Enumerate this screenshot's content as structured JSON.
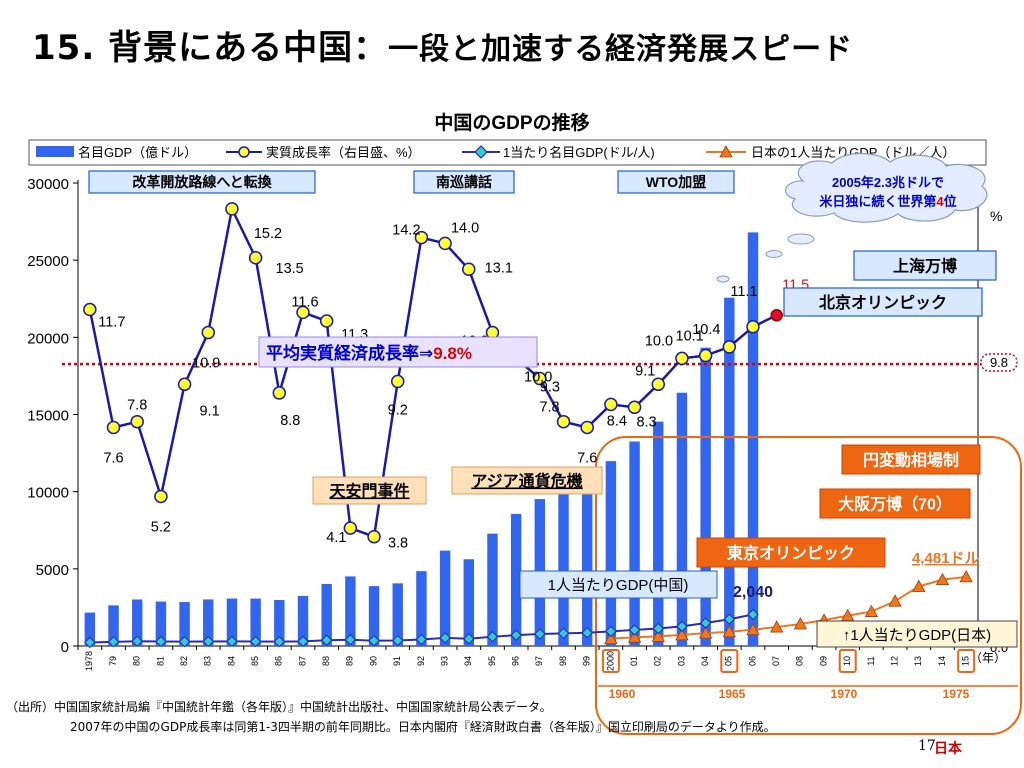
{
  "slide": {
    "title_number": "15.",
    "title_main": "背景にある中国",
    "title_sep": "：",
    "title_sub": "一段と加速する経済発展スピード",
    "footer_line1": "（出所）中国国家統計局編『中国統計年鑑（各年版）』中国統計出版社、中国国家統計局公表データ。",
    "footer_line2": "2007年の中国のGDP成長率は同第1-3四半期の前年同期比。日本内閣府『経済財政白書（各年版）』国立印刷局のデータより作成。",
    "page_number": "17",
    "page_number_jp": "日本"
  },
  "annotations": {
    "reform": "改革開放路線へと転換",
    "south_tour": "南巡講話",
    "wto": "WTO加盟",
    "cloud_line1": "2005年2.3兆ドルで",
    "cloud_line2_a": "米日独に続く世界第",
    "cloud_line2_b": "4",
    "cloud_line2_c": "位",
    "shanghai_expo": "上海万博",
    "beijing_olympics": "北京オリンピック",
    "avg_growth_label": "平均実質経済成長率⇒",
    "avg_growth_value": "9.8%",
    "tiananmen": "天安門事件",
    "asian_crisis": "アジア通貨危機",
    "yen_float": "円変動相場制",
    "osaka_expo": "大阪万博（70）",
    "tokyo_olympics": "東京オリンピック",
    "japan_value": "4,481ドル",
    "china_per_capita_box": "1人当たりGDP(中国)",
    "china_per_capita_value": "2,040",
    "japan_per_capita_box": "↑1人当たりGDP(日本)",
    "right_axis_end_value": "9.8",
    "right_axis_pct": "%",
    "growth_2007_label": "11.5",
    "year_unit": "（年）",
    "japan_years": [
      "1960",
      "1965",
      "1970",
      "1975"
    ]
  },
  "colors": {
    "bar": "#3366ee",
    "growth_line": "#1a1aa8",
    "growth_marker": "#ffff33",
    "per_capita_line": "#2b2bb3",
    "per_capita_marker": "#33cccc",
    "japan_line": "#ee7722",
    "avg_line": "#dd0000",
    "box_blue": "#1f5fcf",
    "box_orange": "#ee6611",
    "cloud_text": "#0000cc"
  },
  "chart_data": {
    "type": "bar",
    "title": "中国のGDPの推移",
    "legend": [
      "名目GDP（億ドル）",
      "実質成長率（右目盛、%）",
      "1当たり名目GDP(ドル/人)",
      "日本の1人当たりGDP（ドル／人）"
    ],
    "categories": [
      "1978",
      "79",
      "80",
      "81",
      "82",
      "83",
      "84",
      "85",
      "86",
      "87",
      "88",
      "89",
      "90",
      "91",
      "92",
      "93",
      "94",
      "95",
      "96",
      "97",
      "98",
      "99",
      "2000",
      "01",
      "02",
      "03",
      "04",
      "05",
      "06",
      "07",
      "08",
      "09",
      "10",
      "11",
      "12",
      "13",
      "14",
      "15"
    ],
    "y_ticks": [
      "0",
      "5000",
      "10000",
      "15000",
      "20000",
      "25000",
      "30000"
    ],
    "ylim": [
      0,
      30000
    ],
    "right_axis_cut_labels": [
      "0.0"
    ],
    "series": [
      {
        "name": "名目GDP（億ドル）",
        "kind": "bar",
        "values": [
          2165,
          2633,
          3015,
          2880,
          2847,
          3018,
          3079,
          3071,
          2980,
          3240,
          4020,
          4510,
          3880,
          4060,
          4850,
          6180,
          5620,
          7280,
          8560,
          9520,
          10200,
          10800,
          11980,
          13250,
          14540,
          16410,
          19330,
          22570,
          26800,
          null,
          null,
          null,
          null,
          null,
          null,
          null,
          null,
          null
        ]
      },
      {
        "name": "実質成長率（右目盛、%）",
        "kind": "line",
        "values": [
          11.7,
          7.6,
          7.8,
          5.2,
          9.1,
          10.9,
          15.2,
          13.5,
          8.8,
          11.6,
          11.3,
          4.1,
          3.8,
          9.2,
          14.2,
          14.0,
          13.1,
          10.9,
          10.0,
          9.3,
          7.8,
          7.6,
          8.4,
          8.3,
          9.1,
          10.0,
          10.1,
          10.4,
          11.1,
          11.5,
          null,
          null,
          null,
          null,
          null,
          null,
          null,
          null
        ],
        "printed_labels": [
          "11.7",
          "7.6",
          "7.8",
          "5.2",
          "9.1",
          "10.9",
          "15.2",
          "13.5",
          "8.8",
          "11.6",
          "11.3",
          "4.1",
          "3.8",
          "9.2",
          "14.2",
          "14.0",
          "13.1",
          "10.9",
          "10.0",
          "9.3",
          "7.8",
          "7.6",
          "8.4",
          "8.3",
          "9.1",
          "10.0",
          "10.1",
          "10.4",
          "11.1",
          "11.5"
        ]
      },
      {
        "name": "1当たり名目GDP(ドル/人)",
        "kind": "line",
        "values": [
          226,
          271,
          306,
          291,
          280,
          292,
          297,
          291,
          281,
          300,
          370,
          407,
          344,
          355,
          419,
          524,
          470,
          602,
          703,
          774,
          822,
          860,
          946,
          1042,
          1135,
          1274,
          1490,
          1731,
          2040,
          null,
          null,
          null,
          null,
          null,
          null,
          null,
          null,
          null
        ]
      },
      {
        "name": "日本の1人当たりGDP（ドル／人）",
        "kind": "line",
        "values": [
          null,
          null,
          null,
          null,
          null,
          null,
          null,
          null,
          null,
          null,
          null,
          null,
          null,
          null,
          null,
          null,
          null,
          null,
          null,
          null,
          null,
          null,
          477,
          563,
          624,
          719,
          836,
          917,
          1058,
          1227,
          1426,
          1675,
          1967,
          2231,
          2905,
          3860,
          4300,
          4481
        ]
      }
    ],
    "avg_growth": 9.8
  }
}
